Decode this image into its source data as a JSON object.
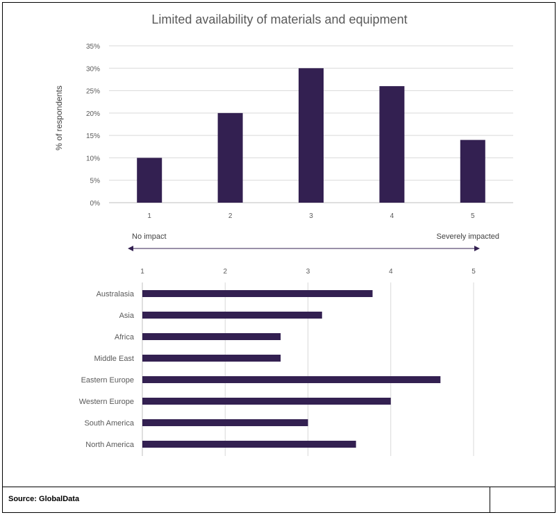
{
  "chart_data": [
    {
      "type": "bar",
      "title": "Limited availability of materials and equipment",
      "ylabel": "% of respondents",
      "categories": [
        "1",
        "2",
        "3",
        "4",
        "5"
      ],
      "values": [
        10,
        20,
        30,
        26,
        14
      ],
      "ylim": [
        0,
        35
      ],
      "yticks": [
        "0%",
        "5%",
        "10%",
        "15%",
        "20%",
        "25%",
        "30%",
        "35%"
      ],
      "grid": true,
      "bar_color": "#332051"
    },
    {
      "type": "bar",
      "orientation": "horizontal",
      "scale_left_label": "No impact",
      "scale_right_label": "Severely impacted",
      "xticks": [
        "1",
        "2",
        "3",
        "4",
        "5"
      ],
      "xlim": [
        1,
        5
      ],
      "categories": [
        "Australasia",
        "Asia",
        "Africa",
        "Middle East",
        "Eastern Europe",
        "Western Europe",
        "South America",
        "North America"
      ],
      "values": [
        3.78,
        3.17,
        2.67,
        2.67,
        4.6,
        4.0,
        3.0,
        3.58
      ],
      "grid": true,
      "bar_color": "#332051"
    }
  ],
  "footer": {
    "source": "Source: GlobalData"
  }
}
